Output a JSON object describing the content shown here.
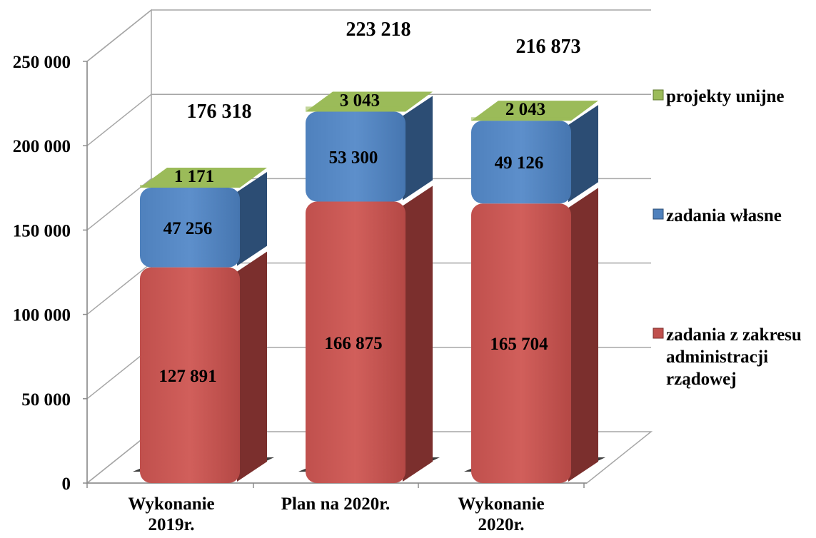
{
  "chart_data": {
    "type": "bar",
    "stacked": true,
    "three_d": true,
    "categories": [
      "Wykonanie 2019r.",
      "Plan na 2020r.",
      "Wykonanie 2020r."
    ],
    "category_label_lines": [
      [
        "Wykonanie",
        "2019r."
      ],
      [
        "Plan na 2020r."
      ],
      [
        "Wykonanie",
        "2020r."
      ]
    ],
    "series": [
      {
        "name": "zadania z zakresu administracji rządowej",
        "legend_lines": [
          "zadania z zakresu",
          "administracji",
          "rządowej"
        ],
        "values": [
          127891,
          166875,
          165704
        ],
        "labels": [
          "127 891",
          "166 875",
          "165 704"
        ],
        "color": "#c0504d",
        "side_color": "#7b2f2d"
      },
      {
        "name": "zadania własne",
        "legend_lines": [
          "zadania własne"
        ],
        "values": [
          47256,
          53300,
          49126
        ],
        "labels": [
          "47 256",
          "53 300",
          "49 126"
        ],
        "color": "#4f81bd",
        "side_color": "#2c4d74"
      },
      {
        "name": "projekty unijne",
        "legend_lines": [
          "projekty unijne"
        ],
        "values": [
          1171,
          3043,
          2043
        ],
        "labels": [
          "1 171",
          "3 043",
          "2 043"
        ],
        "color": "#9bbb59",
        "side_color": "#5f7a2e"
      }
    ],
    "totals": [
      176318,
      223218,
      216873
    ],
    "total_labels": [
      "176 318",
      "223 218",
      "216 873"
    ],
    "yticks": [
      0,
      50000,
      100000,
      150000,
      200000,
      250000
    ],
    "ytick_labels": [
      "0",
      "50 000",
      "100 000",
      "150 000",
      "200 000",
      "250 000"
    ],
    "ylim": [
      0,
      250000
    ],
    "grid": true,
    "legend_position": "right",
    "title": "",
    "xlabel": "",
    "ylabel": ""
  }
}
